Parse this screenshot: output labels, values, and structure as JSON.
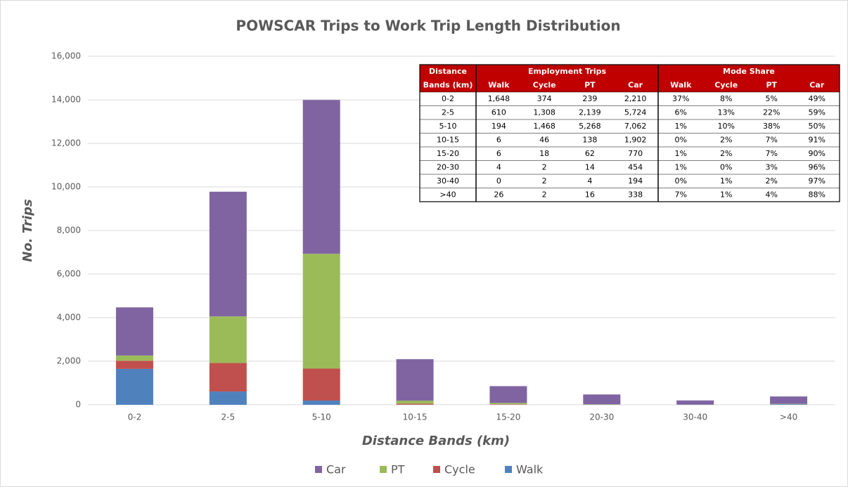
{
  "chart_data": {
    "type": "stacked_bar",
    "title": "POWSCAR Trips to Work Trip Length Distribution",
    "x_label": "Distance Bands (km)",
    "y_label": "No. Trips",
    "categories": [
      "0-2",
      "2-5",
      "5-10",
      "10-15",
      "15-20",
      "20-30",
      "30-40",
      ">40"
    ],
    "series": [
      {
        "name": "Walk",
        "color": "#4f81bd",
        "values": [
          1648,
          610,
          194,
          6,
          6,
          4,
          0,
          26
        ]
      },
      {
        "name": "Cycle",
        "color": "#c0504d",
        "values": [
          374,
          1308,
          1468,
          46,
          18,
          2,
          2,
          2
        ]
      },
      {
        "name": "PT",
        "color": "#9bbb59",
        "values": [
          239,
          2139,
          5268,
          138,
          62,
          14,
          4,
          16
        ]
      },
      {
        "name": "Car",
        "color": "#8064a2",
        "values": [
          2210,
          5724,
          7062,
          1902,
          770,
          454,
          194,
          338
        ]
      }
    ],
    "ylim": [
      0,
      16000
    ],
    "yticks": [
      0,
      {
        "value": 2000,
        "label": "2,000"
      },
      {
        "value": 4000,
        "label": "4,000"
      },
      {
        "value": 6000,
        "label": "6,000"
      },
      {
        "value": 8000,
        "label": "8,000"
      },
      {
        "value": 10000,
        "label": "10,000"
      },
      {
        "value": 12000,
        "label": "12,000"
      },
      {
        "value": 14000,
        "label": "14,000"
      },
      {
        "value": 16000,
        "label": "16,000"
      }
    ],
    "grid": true,
    "legend": "bottom",
    "table": {
      "header_groups": [
        "Distance",
        "Employment Trips",
        "Mode Share"
      ],
      "header": [
        "Bands (km)",
        "Walk",
        "Cycle",
        "PT",
        "Car",
        "Walk",
        "Cycle",
        "PT",
        "Car"
      ],
      "rows": [
        [
          "0-2",
          "1,648",
          "374",
          "239",
          "2,210",
          "37%",
          "8%",
          "5%",
          "49%"
        ],
        [
          "2-5",
          "610",
          "1,308",
          "2,139",
          "5,724",
          "6%",
          "13%",
          "22%",
          "59%"
        ],
        [
          "5-10",
          "194",
          "1,468",
          "5,268",
          "7,062",
          "1%",
          "10%",
          "38%",
          "50%"
        ],
        [
          "10-15",
          "6",
          "46",
          "138",
          "1,902",
          "0%",
          "2%",
          "7%",
          "91%"
        ],
        [
          "15-20",
          "6",
          "18",
          "62",
          "770",
          "1%",
          "2%",
          "7%",
          "90%"
        ],
        [
          "20-30",
          "4",
          "2",
          "14",
          "454",
          "1%",
          "0%",
          "3%",
          "96%"
        ],
        [
          "30-40",
          "0",
          "2",
          "4",
          "194",
          "0%",
          "1%",
          "2%",
          "97%"
        ],
        [
          ">40",
          "26",
          "2",
          "16",
          "338",
          "7%",
          "1%",
          "4%",
          "88%"
        ]
      ]
    }
  }
}
